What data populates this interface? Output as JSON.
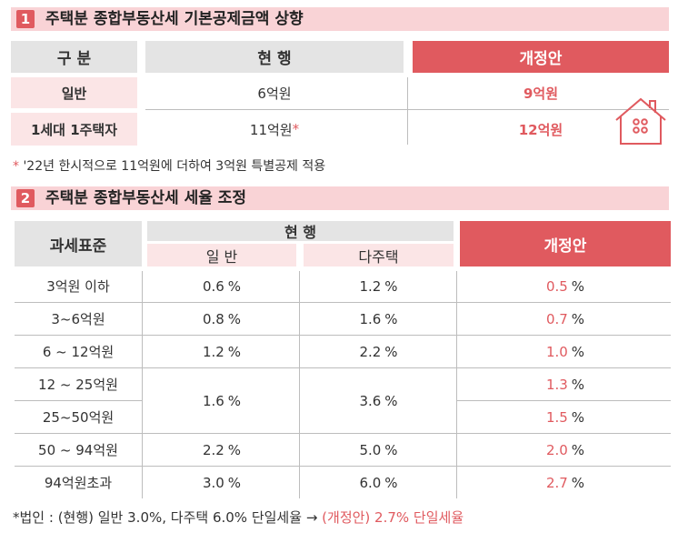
{
  "section1": {
    "number": "1",
    "title": "주택분 종합부동산세 기본공제금액 상향",
    "headers": {
      "category": "구 분",
      "current": "현 행",
      "revised": "개정안"
    },
    "rows": [
      {
        "label": "일반",
        "current": "6억원",
        "revised": "9억원"
      },
      {
        "label": "1세대 1주택자",
        "current": "11억원",
        "current_mark": "*",
        "revised": "12억원"
      }
    ],
    "footnote_mark": "*",
    "footnote": "'22년 한시적으로 11억원에 더하여 3억원 특별공제 적용"
  },
  "section2": {
    "number": "2",
    "title": "주택분 종합부동산세 세율 조정",
    "headers": {
      "tax_base": "과세표준",
      "current": "현 행",
      "general": "일 반",
      "multi": "다주택",
      "revised": "개정안"
    },
    "rows": [
      {
        "base": "3억원 이하",
        "general": "0.6",
        "multi": "1.2",
        "revised": "0.5"
      },
      {
        "base": "3~6억원",
        "general": "0.8",
        "multi": "1.6",
        "revised": "0.7"
      },
      {
        "base": "6 ~ 12억원",
        "general": "1.2",
        "multi": "2.2",
        "revised": "1.0"
      },
      {
        "base": "12 ~ 25억원",
        "revised": "1.3"
      },
      {
        "base": "25~50억원",
        "revised": "1.5"
      },
      {
        "base": "50 ~ 94억원",
        "general": "2.2",
        "multi": "5.0",
        "revised": "2.0"
      },
      {
        "base": "94억원초과",
        "general": "3.0",
        "multi": "6.0",
        "revised": "2.7"
      }
    ],
    "merged": {
      "general": "1.6",
      "multi": "3.6"
    },
    "pct": "%",
    "footnote_a": "*법인 : (현행) 일반 3.0%, 다주택 6.0% 단일세율",
    "arrow": "→",
    "footnote_b": "(개정안) 2.7% 단일세율"
  },
  "colors": {
    "accent": "#e05a5f",
    "header_pink": "#f9d3d6",
    "cell_pink": "#fbe5e6",
    "gray": "#e4e4e4"
  },
  "icons": [
    "house-icon"
  ]
}
